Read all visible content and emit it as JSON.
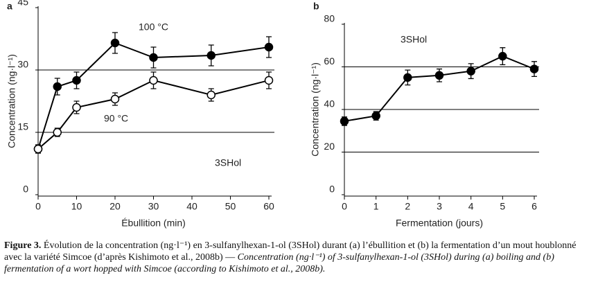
{
  "chart_data": [
    {
      "type": "line",
      "panel": "a",
      "ylabel": "Concentration (ng·l⁻¹)",
      "xlabel": "Ébullition (min)",
      "x": [
        0,
        5,
        10,
        20,
        30,
        45,
        60
      ],
      "xlim": [
        0,
        60
      ],
      "xticks": [
        0,
        10,
        20,
        30,
        40,
        50,
        60
      ],
      "ylim": [
        0,
        45
      ],
      "yticks": [
        0,
        15,
        30,
        45
      ],
      "grid": true,
      "series": [
        {
          "name": "100 °C",
          "color": "#000000",
          "marker_fill": "#000000",
          "values": [
            11,
            26,
            27.5,
            36.5,
            33,
            33.5,
            35.5
          ],
          "errors": [
            1,
            2,
            2,
            2.5,
            2.5,
            2.5,
            2.5
          ]
        },
        {
          "name": "90 °C",
          "color": "#000000",
          "marker_fill": "#ffffff",
          "values": [
            11,
            15,
            21,
            23,
            27.5,
            24,
            27.5
          ],
          "errors": [
            1,
            1,
            1.5,
            1.5,
            2,
            1.5,
            2
          ]
        }
      ],
      "annotations": [
        "3SHol"
      ]
    },
    {
      "type": "line",
      "panel": "b",
      "ylabel": "Concentration (ng·l⁻¹)",
      "xlabel": "Fermentation (jours)",
      "x": [
        0,
        1,
        2,
        3,
        4,
        5,
        6
      ],
      "xlim": [
        0,
        6
      ],
      "xticks": [
        0,
        1,
        2,
        3,
        4,
        5,
        6
      ],
      "ylim": [
        0,
        80
      ],
      "yticks": [
        0,
        20,
        40,
        60,
        80
      ],
      "grid": true,
      "series": [
        {
          "name": "3SHol",
          "color": "#000000",
          "marker_fill": "#000000",
          "values": [
            34.5,
            37,
            55,
            56,
            58,
            65,
            59
          ],
          "errors": [
            2,
            2,
            3.5,
            3,
            3.5,
            4,
            3.5
          ]
        }
      ],
      "annotations": []
    }
  ],
  "caption": {
    "label": "Figure 3.",
    "french": "Évolution de la concentration (ng·l⁻¹) en 3-sulfanylhexan-1-ol (3SHol) durant (a) l’ébullition et (b) la fermentation d’un mout houblonné avec la variété Simcoe (d’après Kishimoto et al., 2008b) —",
    "english": "Concentration (ng·l⁻¹) of 3-sulfanylhexan-1-ol (3SHol) during (a) boiling and (b) fermentation of a wort hopped with Simcoe (according to Kishimoto et al., 2008b)."
  }
}
